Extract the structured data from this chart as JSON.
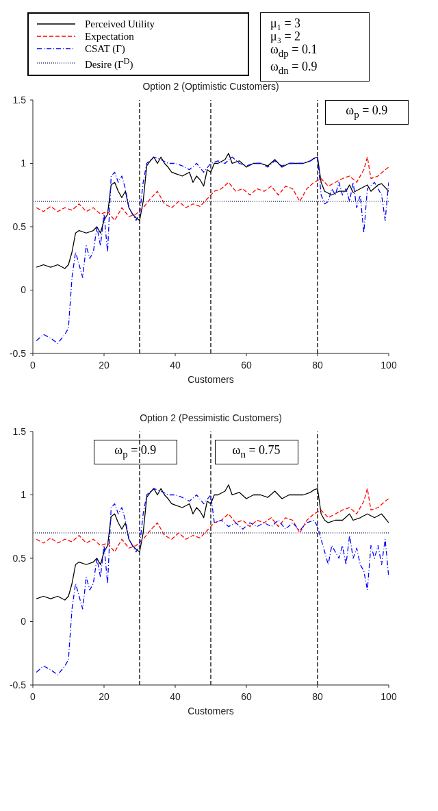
{
  "chart_data": [
    {
      "type": "line",
      "title": "Option 2 (Optimistic Customers)",
      "xlabel": "Customers",
      "xlim": [
        0,
        100
      ],
      "xticks": [
        0,
        20,
        40,
        60,
        80,
        100
      ],
      "ylim": [
        -0.5,
        1.5
      ],
      "yticks": [
        -0.5,
        0,
        0.5,
        1,
        1.5
      ],
      "grid": false,
      "legend": "top left",
      "marker": "none",
      "annotations": [
        "μ₁ = 3",
        "μ₃ = 2",
        "ω$_{dp}$ = 0.1",
        "ω$_{dn}$ = 0.9",
        "ω$_{p}$ = 0.9"
      ],
      "ref_lines": [
        {
          "axis": "x",
          "value": 30,
          "color": "#000000",
          "line_style": "dashed"
        },
        {
          "axis": "x",
          "value": 50,
          "color": "#000000",
          "line_style": "dashed"
        },
        {
          "axis": "x",
          "value": 80,
          "color": "#000000",
          "line_style": "dashed"
        }
      ],
      "series": [
        {
          "name": "Perceived Utility",
          "color": "#000000",
          "line_style": "solid",
          "x": [
            1,
            3,
            5,
            7,
            9,
            10,
            11,
            12,
            13,
            15,
            17,
            18,
            19,
            20,
            21,
            22,
            23,
            24,
            25,
            26,
            27,
            28,
            29,
            30,
            31,
            32,
            33,
            34,
            35,
            36,
            37,
            38,
            39,
            40,
            42,
            44,
            45,
            46,
            47,
            48,
            49,
            50,
            51,
            52,
            54,
            55,
            56,
            58,
            60,
            62,
            64,
            66,
            68,
            70,
            72,
            74,
            76,
            78,
            79,
            80,
            81,
            82,
            84,
            86,
            88,
            89,
            90,
            92,
            94,
            95,
            97,
            98,
            100
          ],
          "values": [
            0.18,
            0.2,
            0.18,
            0.2,
            0.17,
            0.2,
            0.3,
            0.45,
            0.47,
            0.45,
            0.47,
            0.5,
            0.45,
            0.55,
            0.6,
            0.83,
            0.85,
            0.78,
            0.73,
            0.78,
            0.65,
            0.6,
            0.57,
            0.55,
            0.7,
            0.98,
            1.02,
            1.05,
            1.0,
            1.05,
            1.0,
            0.97,
            0.93,
            0.92,
            0.9,
            0.93,
            0.85,
            0.9,
            0.87,
            0.82,
            0.95,
            0.93,
            1.0,
            1.0,
            1.03,
            1.08,
            1.0,
            1.02,
            0.97,
            1.0,
            1.0,
            0.98,
            1.03,
            0.97,
            1.0,
            1.0,
            1.0,
            1.02,
            1.04,
            1.05,
            0.85,
            0.78,
            0.75,
            0.78,
            0.78,
            0.83,
            0.77,
            0.8,
            0.83,
            0.78,
            0.83,
            0.84,
            0.78
          ]
        },
        {
          "name": "Expectation",
          "color": "#ff0000",
          "line_style": "dashed",
          "x": [
            1,
            3,
            5,
            7,
            9,
            11,
            13,
            15,
            17,
            19,
            21,
            23,
            25,
            27,
            29,
            31,
            33,
            35,
            37,
            39,
            41,
            43,
            45,
            47,
            49,
            51,
            53,
            55,
            57,
            59,
            61,
            63,
            65,
            67,
            69,
            71,
            73,
            75,
            77,
            79,
            81,
            83,
            85,
            87,
            89,
            91,
            93,
            94,
            95,
            97,
            99,
            100
          ],
          "values": [
            0.65,
            0.62,
            0.66,
            0.62,
            0.65,
            0.63,
            0.68,
            0.62,
            0.65,
            0.6,
            0.62,
            0.55,
            0.65,
            0.58,
            0.6,
            0.65,
            0.72,
            0.78,
            0.68,
            0.65,
            0.7,
            0.65,
            0.68,
            0.66,
            0.72,
            0.78,
            0.8,
            0.85,
            0.78,
            0.8,
            0.75,
            0.8,
            0.78,
            0.82,
            0.75,
            0.82,
            0.8,
            0.7,
            0.8,
            0.85,
            0.88,
            0.82,
            0.85,
            0.88,
            0.9,
            0.85,
            0.95,
            1.05,
            0.88,
            0.9,
            0.95,
            0.97
          ]
        },
        {
          "name": "CSAT (Γ)",
          "color": "#0000ff",
          "line_style": "dashdot",
          "x": [
            1,
            3,
            5,
            7,
            9,
            10,
            11,
            12,
            13,
            14,
            15,
            16,
            17,
            18,
            19,
            20,
            21,
            22,
            23,
            24,
            25,
            26,
            27,
            28,
            29,
            30,
            31,
            32,
            34,
            36,
            38,
            40,
            42,
            44,
            46,
            48,
            50,
            52,
            54,
            56,
            58,
            60,
            62,
            64,
            66,
            68,
            70,
            72,
            74,
            76,
            78,
            80,
            81,
            82,
            83,
            84,
            85,
            86,
            87,
            88,
            89,
            90,
            91,
            92,
            93,
            94,
            96,
            98,
            99,
            100
          ],
          "values": [
            -0.4,
            -0.35,
            -0.38,
            -0.42,
            -0.35,
            -0.3,
            0.1,
            0.3,
            0.2,
            0.1,
            0.35,
            0.25,
            0.3,
            0.5,
            0.35,
            0.6,
            0.3,
            0.9,
            0.93,
            0.85,
            0.9,
            0.8,
            0.65,
            0.6,
            0.55,
            0.6,
            0.85,
            1.0,
            1.05,
            1.03,
            1.0,
            1.0,
            0.98,
            0.95,
            1.0,
            0.93,
            1.0,
            1.02,
            1.0,
            1.05,
            1.0,
            0.98,
            1.0,
            1.0,
            0.97,
            1.02,
            0.98,
            1.0,
            1.0,
            1.0,
            1.02,
            1.05,
            0.75,
            0.68,
            0.7,
            0.8,
            0.75,
            0.85,
            0.75,
            0.8,
            0.7,
            0.85,
            0.65,
            0.75,
            0.45,
            0.8,
            0.85,
            0.75,
            0.55,
            0.85
          ]
        },
        {
          "name": "Desire (Γ$^{D}$)",
          "color": "#333366",
          "line_style": "dotted",
          "x": [
            0,
            100
          ],
          "values": [
            0.7,
            0.7
          ]
        }
      ]
    },
    {
      "type": "line",
      "title": "Option 2 (Pessimistic Customers)",
      "xlabel": "Customers",
      "xlim": [
        0,
        100
      ],
      "xticks": [
        0,
        20,
        40,
        60,
        80,
        100
      ],
      "ylim": [
        -0.5,
        1.5
      ],
      "yticks": [
        -0.5,
        0,
        0.5,
        1,
        1.5
      ],
      "grid": false,
      "marker": "none",
      "annotations": [
        "ω$_{p}$ = 0.9",
        "ω$_{n}$ = 0.75"
      ],
      "ref_lines": [
        {
          "axis": "x",
          "value": 30,
          "color": "#000000",
          "line_style": "dashed"
        },
        {
          "axis": "x",
          "value": 50,
          "color": "#000000",
          "line_style": "dashed"
        },
        {
          "axis": "x",
          "value": 80,
          "color": "#000000",
          "line_style": "dashed"
        }
      ],
      "series": [
        {
          "color": "#000000",
          "line_style": "solid",
          "x": [
            1,
            3,
            5,
            7,
            9,
            10,
            11,
            12,
            13,
            15,
            17,
            18,
            19,
            20,
            21,
            22,
            23,
            24,
            25,
            26,
            27,
            28,
            29,
            30,
            31,
            32,
            33,
            34,
            35,
            36,
            37,
            38,
            39,
            40,
            42,
            44,
            45,
            46,
            47,
            48,
            49,
            50,
            51,
            52,
            54,
            55,
            56,
            58,
            60,
            62,
            64,
            66,
            68,
            70,
            72,
            74,
            76,
            78,
            79,
            80,
            81,
            82,
            83,
            85,
            87,
            89,
            90,
            92,
            94,
            96,
            98,
            100
          ],
          "values": [
            0.18,
            0.2,
            0.18,
            0.2,
            0.17,
            0.2,
            0.3,
            0.45,
            0.47,
            0.45,
            0.47,
            0.5,
            0.45,
            0.55,
            0.6,
            0.83,
            0.85,
            0.78,
            0.73,
            0.78,
            0.65,
            0.6,
            0.57,
            0.55,
            0.7,
            0.98,
            1.02,
            1.05,
            1.0,
            1.05,
            1.0,
            0.97,
            0.93,
            0.92,
            0.9,
            0.93,
            0.85,
            0.9,
            0.87,
            0.82,
            0.95,
            0.93,
            1.0,
            1.0,
            1.03,
            1.08,
            1.0,
            1.02,
            0.97,
            1.0,
            1.0,
            0.98,
            1.03,
            0.97,
            1.0,
            1.0,
            1.0,
            1.02,
            1.04,
            1.05,
            0.85,
            0.8,
            0.78,
            0.8,
            0.8,
            0.85,
            0.8,
            0.82,
            0.85,
            0.82,
            0.85,
            0.78
          ]
        },
        {
          "color": "#ff0000",
          "line_style": "dashed",
          "x": [
            1,
            3,
            5,
            7,
            9,
            11,
            13,
            15,
            17,
            19,
            21,
            23,
            25,
            27,
            29,
            31,
            33,
            35,
            37,
            39,
            41,
            43,
            45,
            47,
            49,
            51,
            53,
            55,
            57,
            59,
            61,
            63,
            65,
            67,
            69,
            71,
            73,
            75,
            77,
            79,
            81,
            83,
            85,
            87,
            89,
            91,
            93,
            94,
            95,
            97,
            99,
            100
          ],
          "values": [
            0.65,
            0.62,
            0.66,
            0.62,
            0.65,
            0.63,
            0.68,
            0.62,
            0.65,
            0.6,
            0.62,
            0.55,
            0.65,
            0.58,
            0.6,
            0.65,
            0.72,
            0.78,
            0.68,
            0.65,
            0.7,
            0.65,
            0.68,
            0.66,
            0.72,
            0.78,
            0.8,
            0.85,
            0.78,
            0.8,
            0.75,
            0.8,
            0.78,
            0.82,
            0.75,
            0.82,
            0.8,
            0.7,
            0.8,
            0.85,
            0.88,
            0.82,
            0.85,
            0.88,
            0.9,
            0.85,
            0.95,
            1.05,
            0.88,
            0.9,
            0.95,
            0.97
          ]
        },
        {
          "color": "#0000ff",
          "line_style": "dashdot",
          "x": [
            1,
            3,
            5,
            7,
            9,
            10,
            11,
            12,
            13,
            14,
            15,
            16,
            17,
            18,
            19,
            20,
            21,
            22,
            23,
            24,
            25,
            26,
            27,
            28,
            29,
            30,
            31,
            32,
            34,
            36,
            38,
            40,
            42,
            44,
            46,
            48,
            50,
            51,
            53,
            55,
            57,
            59,
            61,
            63,
            65,
            67,
            69,
            71,
            73,
            75,
            77,
            79,
            80,
            81,
            82,
            83,
            84,
            86,
            87,
            88,
            89,
            90,
            91,
            92,
            93,
            94,
            95,
            96,
            97,
            98,
            99,
            100
          ],
          "values": [
            -0.4,
            -0.35,
            -0.38,
            -0.42,
            -0.35,
            -0.3,
            0.1,
            0.3,
            0.2,
            0.1,
            0.35,
            0.25,
            0.3,
            0.5,
            0.35,
            0.6,
            0.3,
            0.9,
            0.93,
            0.85,
            0.9,
            0.8,
            0.65,
            0.6,
            0.55,
            0.6,
            0.85,
            1.0,
            1.05,
            1.03,
            1.0,
            1.0,
            0.98,
            0.95,
            1.0,
            0.93,
            1.0,
            0.78,
            0.8,
            0.75,
            0.78,
            0.73,
            0.78,
            0.75,
            0.78,
            0.75,
            0.8,
            0.73,
            0.78,
            0.72,
            0.78,
            0.8,
            0.75,
            0.65,
            0.55,
            0.45,
            0.6,
            0.5,
            0.6,
            0.45,
            0.68,
            0.5,
            0.58,
            0.45,
            0.4,
            0.25,
            0.6,
            0.5,
            0.6,
            0.45,
            0.65,
            0.35
          ]
        },
        {
          "color": "#333366",
          "line_style": "dotted",
          "x": [
            0,
            100
          ],
          "values": [
            0.7,
            0.7
          ]
        }
      ]
    }
  ]
}
